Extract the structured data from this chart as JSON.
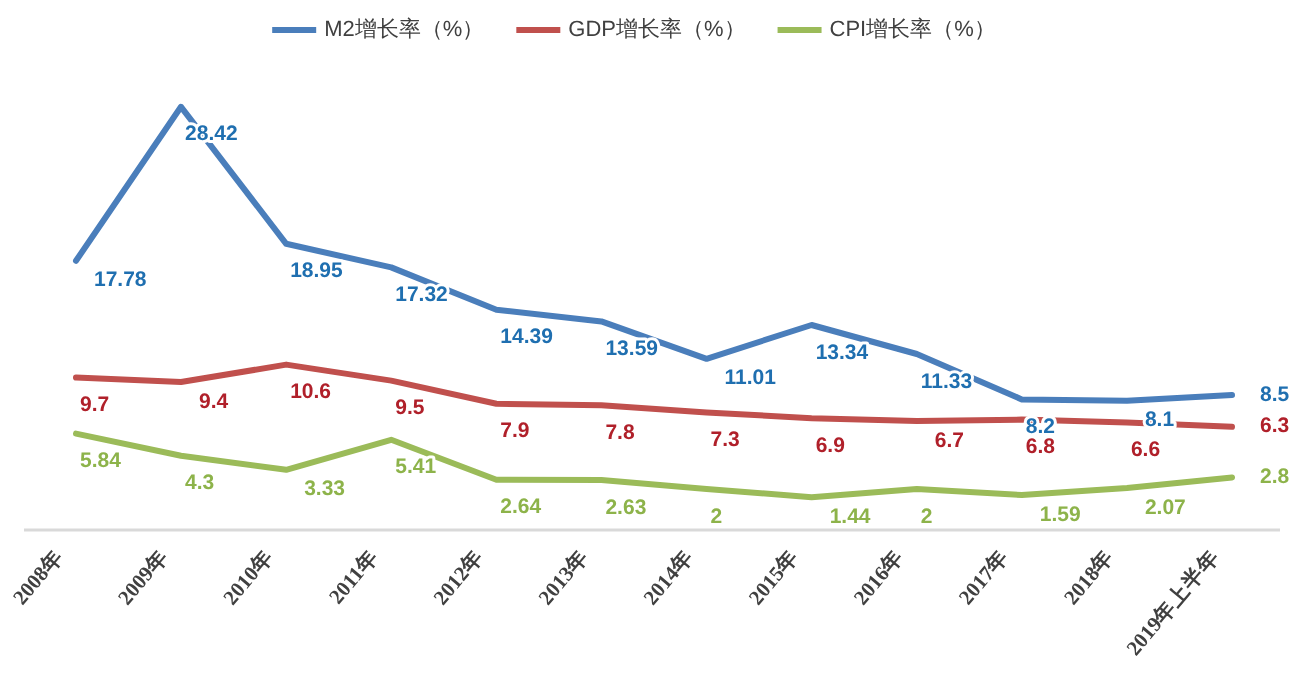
{
  "chart_data": {
    "type": "line",
    "categories": [
      "2008年",
      "2009年",
      "2010年",
      "2011年",
      "2012年",
      "2013年",
      "2014年",
      "2015年",
      "2016年",
      "2017年",
      "2018年",
      "2019年上半年"
    ],
    "series": [
      {
        "name": "M2增长率（%）",
        "color": "#4a7ebb",
        "values": [
          17.78,
          28.42,
          18.95,
          17.32,
          14.39,
          13.59,
          11.01,
          13.34,
          11.33,
          8.2,
          8.1,
          8.5
        ]
      },
      {
        "name": "GDP增长率（%）",
        "color": "#c0504d",
        "values": [
          9.7,
          9.4,
          10.6,
          9.5,
          7.9,
          7.8,
          7.3,
          6.9,
          6.7,
          6.8,
          6.6,
          6.3
        ]
      },
      {
        "name": "CPI增长率（%）",
        "color": "#9bbb59",
        "values": [
          5.84,
          4.3,
          3.33,
          5.41,
          2.64,
          2.63,
          2,
          1.44,
          2,
          1.59,
          2.07,
          2.8
        ]
      }
    ],
    "data_labels": true,
    "legend": "top",
    "grid": false,
    "marker": "none",
    "line_style": "solid"
  }
}
